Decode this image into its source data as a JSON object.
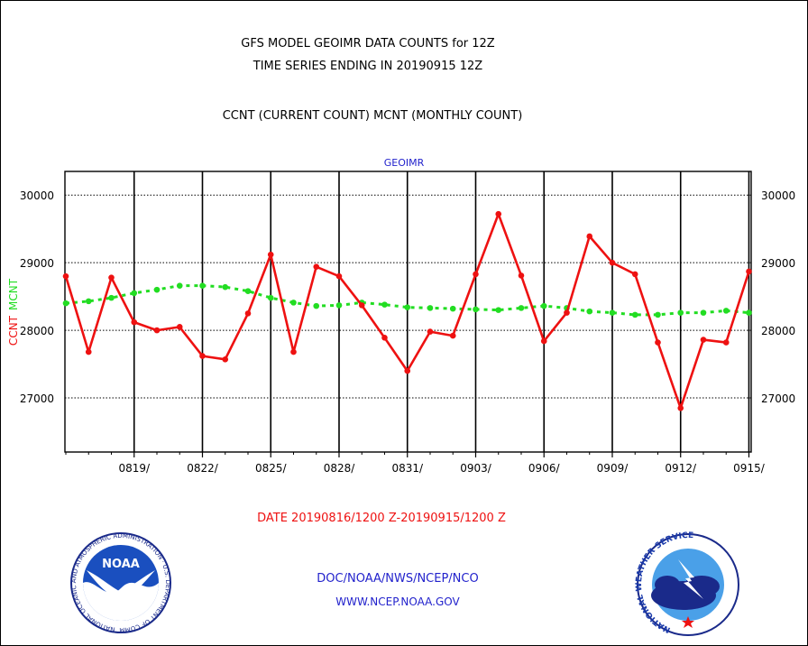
{
  "header": {
    "title_line1": "GFS MODEL GEOIMR DATA COUNTS for 12Z",
    "title_line2": "TIME SERIES ENDING IN 20190915 12Z",
    "subtitle": "CCNT (CURRENT COUNT) MCNT (MONTHLY COUNT)"
  },
  "footer": {
    "date_range": "DATE 20190816/1200 Z-20190915/1200 Z",
    "org_line": "DOC/NOAA/NWS/NCEP/NCO",
    "url_line": "WWW.NCEP.NOAA.GOV"
  },
  "logos": {
    "noaa_text": "NOAA",
    "noaa_ring_text": "NATIONAL OCEANIC AND ATMOSPHERIC ADMINISTRATION · U.S. DEPARTMENT OF COMMERCE ·",
    "nws_ring_text": "NATIONAL WEATHER SERVICE"
  },
  "colors": {
    "ccnt": "#ee1111",
    "mcnt": "#22dd22",
    "text": "#000000",
    "blue_text": "#2222cc",
    "date_text": "#ee1111"
  },
  "chart_data": {
    "type": "line",
    "title": "GEOIMR",
    "ylabel_parts": [
      "CCNT",
      "MCNT"
    ],
    "ylim": [
      26200,
      30350
    ],
    "yticks": [
      27000,
      28000,
      29000,
      30000
    ],
    "grid": true,
    "x_tick_labels": [
      "0819/",
      "0822/",
      "0825/",
      "0828/",
      "0831/",
      "0903/",
      "0906/",
      "0909/",
      "0912/",
      "0915/"
    ],
    "x_tick_day_index": [
      3,
      6,
      9,
      12,
      15,
      18,
      21,
      24,
      27,
      30
    ],
    "x_range_days": [
      0,
      30.1
    ],
    "series": [
      {
        "name": "CCNT",
        "values": [
          28800,
          27680,
          28780,
          28120,
          28000,
          28050,
          27620,
          27570,
          28250,
          29120,
          27680,
          28940,
          28800,
          28370,
          27890,
          27400,
          27980,
          27920,
          28830,
          29720,
          28810,
          27840,
          28260,
          29390,
          29000,
          28830,
          27820,
          26850,
          27860,
          27820,
          28870
        ]
      },
      {
        "name": "MCNT",
        "values": [
          28400,
          28430,
          28480,
          28550,
          28600,
          28660,
          28660,
          28640,
          28580,
          28480,
          28410,
          28360,
          28370,
          28410,
          28380,
          28340,
          28330,
          28320,
          28310,
          28300,
          28330,
          28360,
          28330,
          28280,
          28260,
          28230,
          28230,
          28260,
          28260,
          28290,
          28260
        ]
      }
    ]
  }
}
